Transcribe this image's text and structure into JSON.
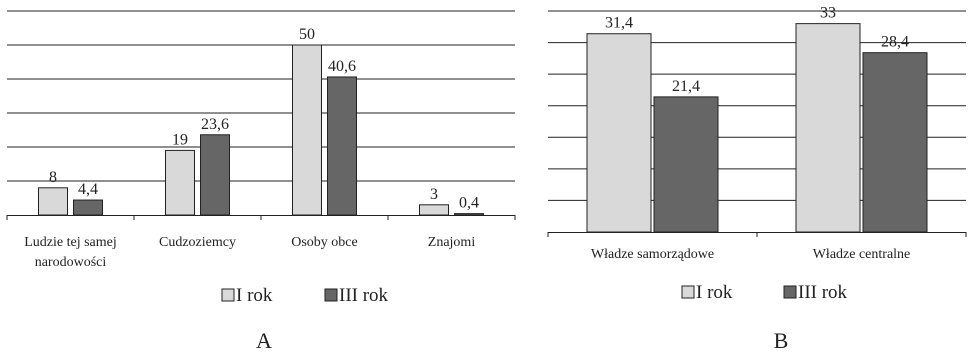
{
  "chart_data": [
    {
      "type": "bar",
      "panel_label": "A",
      "categories": [
        "Ludzie tej samej narodowości",
        "Cudzoziemcy",
        "Osoby obce",
        "Znajomi"
      ],
      "category_lines": [
        [
          "Ludzie tej samej",
          "narodowości"
        ],
        [
          "Cudzoziemcy"
        ],
        [
          "Osoby obce"
        ],
        [
          "Znajomi"
        ]
      ],
      "series": [
        {
          "name": "I rok",
          "values": [
            8,
            19,
            50,
            3
          ],
          "labels": [
            "8",
            "19",
            "50",
            "3"
          ],
          "color": "#d9d9d9"
        },
        {
          "name": "III rok",
          "values": [
            4.4,
            23.6,
            40.6,
            0.4
          ],
          "labels": [
            "4,4",
            "23,6",
            "40,6",
            "0,4"
          ],
          "color": "#666666"
        }
      ],
      "ylim": [
        0,
        60
      ],
      "grid": true,
      "legend": "bottom"
    },
    {
      "type": "bar",
      "panel_label": "B",
      "categories": [
        "Władze samorządowe",
        "Władze centralne"
      ],
      "category_lines": [
        [
          "Władze samorządowe"
        ],
        [
          "Władze centralne"
        ]
      ],
      "series": [
        {
          "name": "I rok",
          "values": [
            31.4,
            33
          ],
          "labels": [
            "31,4",
            "33"
          ],
          "color": "#d9d9d9"
        },
        {
          "name": "III rok",
          "values": [
            21.4,
            28.4
          ],
          "labels": [
            "21,4",
            "28,4"
          ],
          "color": "#666666"
        }
      ],
      "ylim": [
        0,
        35
      ],
      "grid": true,
      "legend": "bottom"
    }
  ]
}
